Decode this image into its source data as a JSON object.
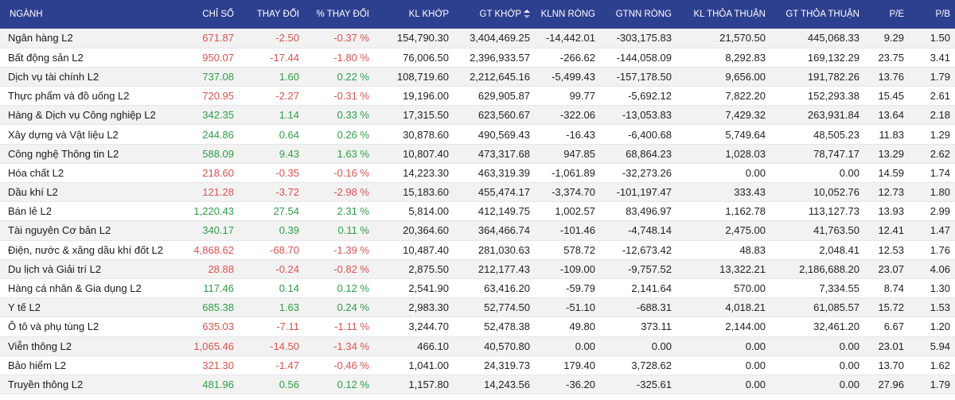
{
  "colors": {
    "header_bg": "#2d3f8f",
    "up": "#2e9e47",
    "down": "#d9534f",
    "row_alt": "#f2f2f2"
  },
  "columns": [
    "NGÀNH",
    "CHỈ SỐ",
    "THAY ĐỔI",
    "% THAY ĐỔI",
    "KL KHỚP",
    "GT KHỚP",
    "KLNN RÒNG",
    "GTNN RÒNG",
    "KL THỎA THUẬN",
    "GT THỎA THUẬN",
    "P/E",
    "P/B"
  ],
  "sort_icon": "sort-desc-icon",
  "rows": [
    {
      "name": "Ngân hàng L2",
      "index": "671.87",
      "change": "-2.50",
      "pct": "-0.37 %",
      "kl_khop": "154,790.30",
      "gt_khop": "3,404,469.25",
      "klnn": "-14,442.01",
      "gtnn": "-303,175.83",
      "kl_tt": "21,570.50",
      "gt_tt": "445,068.33",
      "pe": "9.29",
      "pb": "1.50",
      "dir": "down"
    },
    {
      "name": "Bất động sản L2",
      "index": "950.07",
      "change": "-17.44",
      "pct": "-1.80 %",
      "kl_khop": "76,006.50",
      "gt_khop": "2,396,933.57",
      "klnn": "-266.62",
      "gtnn": "-144,058.09",
      "kl_tt": "8,292.83",
      "gt_tt": "169,132.29",
      "pe": "23.75",
      "pb": "3.41",
      "dir": "down"
    },
    {
      "name": "Dịch vụ tài chính L2",
      "index": "737.08",
      "change": "1.60",
      "pct": "0.22 %",
      "kl_khop": "108,719.60",
      "gt_khop": "2,212,645.16",
      "klnn": "-5,499.43",
      "gtnn": "-157,178.50",
      "kl_tt": "9,656.00",
      "gt_tt": "191,782.26",
      "pe": "13.76",
      "pb": "1.79",
      "dir": "up"
    },
    {
      "name": "Thực phẩm và đồ uống L2",
      "index": "720.95",
      "change": "-2.27",
      "pct": "-0.31 %",
      "kl_khop": "19,196.00",
      "gt_khop": "629,905.87",
      "klnn": "99.77",
      "gtnn": "-5,692.12",
      "kl_tt": "7,822.20",
      "gt_tt": "152,293.38",
      "pe": "15.45",
      "pb": "2.61",
      "dir": "down"
    },
    {
      "name": "Hàng & Dịch vụ Công nghiệp L2",
      "index": "342.35",
      "change": "1.14",
      "pct": "0.33 %",
      "kl_khop": "17,315.50",
      "gt_khop": "623,560.67",
      "klnn": "-322.06",
      "gtnn": "-13,053.83",
      "kl_tt": "7,429.32",
      "gt_tt": "263,931.84",
      "pe": "13.64",
      "pb": "2.18",
      "dir": "up"
    },
    {
      "name": "Xây dựng và Vật liệu L2",
      "index": "244.86",
      "change": "0.64",
      "pct": "0.26 %",
      "kl_khop": "30,878.60",
      "gt_khop": "490,569.43",
      "klnn": "-16.43",
      "gtnn": "-6,400.68",
      "kl_tt": "5,749.64",
      "gt_tt": "48,505.23",
      "pe": "11.83",
      "pb": "1.29",
      "dir": "up"
    },
    {
      "name": "Công nghệ Thông tin L2",
      "index": "588.09",
      "change": "9.43",
      "pct": "1.63 %",
      "kl_khop": "10,807.40",
      "gt_khop": "473,317.68",
      "klnn": "947.85",
      "gtnn": "68,864.23",
      "kl_tt": "1,028.03",
      "gt_tt": "78,747.17",
      "pe": "13.29",
      "pb": "2.62",
      "dir": "up"
    },
    {
      "name": "Hóa chất L2",
      "index": "218.60",
      "change": "-0.35",
      "pct": "-0.16 %",
      "kl_khop": "14,223.30",
      "gt_khop": "463,319.39",
      "klnn": "-1,061.89",
      "gtnn": "-32,273.26",
      "kl_tt": "0.00",
      "gt_tt": "0.00",
      "pe": "14.59",
      "pb": "1.74",
      "dir": "down"
    },
    {
      "name": "Dầu khí L2",
      "index": "121.28",
      "change": "-3.72",
      "pct": "-2.98 %",
      "kl_khop": "15,183.60",
      "gt_khop": "455,474.17",
      "klnn": "-3,374.70",
      "gtnn": "-101,197.47",
      "kl_tt": "333.43",
      "gt_tt": "10,052.76",
      "pe": "12.73",
      "pb": "1.80",
      "dir": "down"
    },
    {
      "name": "Bán lẻ L2",
      "index": "1,220.43",
      "change": "27.54",
      "pct": "2.31 %",
      "kl_khop": "5,814.00",
      "gt_khop": "412,149.75",
      "klnn": "1,002.57",
      "gtnn": "83,496.97",
      "kl_tt": "1,162.78",
      "gt_tt": "113,127.73",
      "pe": "13.93",
      "pb": "2.99",
      "dir": "up"
    },
    {
      "name": "Tài nguyên Cơ bản L2",
      "index": "340.17",
      "change": "0.39",
      "pct": "0.11 %",
      "kl_khop": "20,364.60",
      "gt_khop": "364,466.74",
      "klnn": "-101.46",
      "gtnn": "-4,748.14",
      "kl_tt": "2,475.00",
      "gt_tt": "41,763.50",
      "pe": "12.41",
      "pb": "1.47",
      "dir": "up"
    },
    {
      "name": "Điện, nước & xăng dầu khí đốt L2",
      "index": "4,868.62",
      "change": "-68.70",
      "pct": "-1.39 %",
      "kl_khop": "10,487.40",
      "gt_khop": "281,030.63",
      "klnn": "578.72",
      "gtnn": "-12,673.42",
      "kl_tt": "48.83",
      "gt_tt": "2,048.41",
      "pe": "12.53",
      "pb": "1.76",
      "dir": "down"
    },
    {
      "name": "Du lịch và Giải trí L2",
      "index": "28.88",
      "change": "-0.24",
      "pct": "-0.82 %",
      "kl_khop": "2,875.50",
      "gt_khop": "212,177.43",
      "klnn": "-109.00",
      "gtnn": "-9,757.52",
      "kl_tt": "13,322.21",
      "gt_tt": "2,186,688.20",
      "pe": "23.07",
      "pb": "4.06",
      "dir": "down"
    },
    {
      "name": "Hàng cá nhân & Gia dụng L2",
      "index": "117.46",
      "change": "0.14",
      "pct": "0.12 %",
      "kl_khop": "2,541.90",
      "gt_khop": "63,416.20",
      "klnn": "-59.79",
      "gtnn": "2,141.64",
      "kl_tt": "570.00",
      "gt_tt": "7,334.55",
      "pe": "8.74",
      "pb": "1.30",
      "dir": "up"
    },
    {
      "name": "Y tế L2",
      "index": "685.38",
      "change": "1.63",
      "pct": "0.24 %",
      "kl_khop": "2,983.30",
      "gt_khop": "52,774.50",
      "klnn": "-51.10",
      "gtnn": "-688.31",
      "kl_tt": "4,018.21",
      "gt_tt": "61,085.57",
      "pe": "15.72",
      "pb": "1.53",
      "dir": "up"
    },
    {
      "name": "Ô tô và phụ tùng L2",
      "index": "635.03",
      "change": "-7.11",
      "pct": "-1.11 %",
      "kl_khop": "3,244.70",
      "gt_khop": "52,478.38",
      "klnn": "49.80",
      "gtnn": "373.11",
      "kl_tt": "2,144.00",
      "gt_tt": "32,461.20",
      "pe": "6.67",
      "pb": "1.20",
      "dir": "down"
    },
    {
      "name": "Viễn thông L2",
      "index": "1,065.46",
      "change": "-14.50",
      "pct": "-1.34 %",
      "kl_khop": "466.10",
      "gt_khop": "40,570.80",
      "klnn": "0.00",
      "gtnn": "0.00",
      "kl_tt": "0.00",
      "gt_tt": "0.00",
      "pe": "23.01",
      "pb": "5.94",
      "dir": "down"
    },
    {
      "name": "Bảo hiểm L2",
      "index": "321.30",
      "change": "-1.47",
      "pct": "-0.46 %",
      "kl_khop": "1,041.00",
      "gt_khop": "24,319.73",
      "klnn": "179.40",
      "gtnn": "3,728.62",
      "kl_tt": "0.00",
      "gt_tt": "0.00",
      "pe": "13.70",
      "pb": "1.62",
      "dir": "down"
    },
    {
      "name": "Truyền thông L2",
      "index": "481.96",
      "change": "0.56",
      "pct": "0.12 %",
      "kl_khop": "1,157.80",
      "gt_khop": "14,243.56",
      "klnn": "-36.20",
      "gtnn": "-325.61",
      "kl_tt": "0.00",
      "gt_tt": "0.00",
      "pe": "27.96",
      "pb": "1.79",
      "dir": "up"
    }
  ]
}
